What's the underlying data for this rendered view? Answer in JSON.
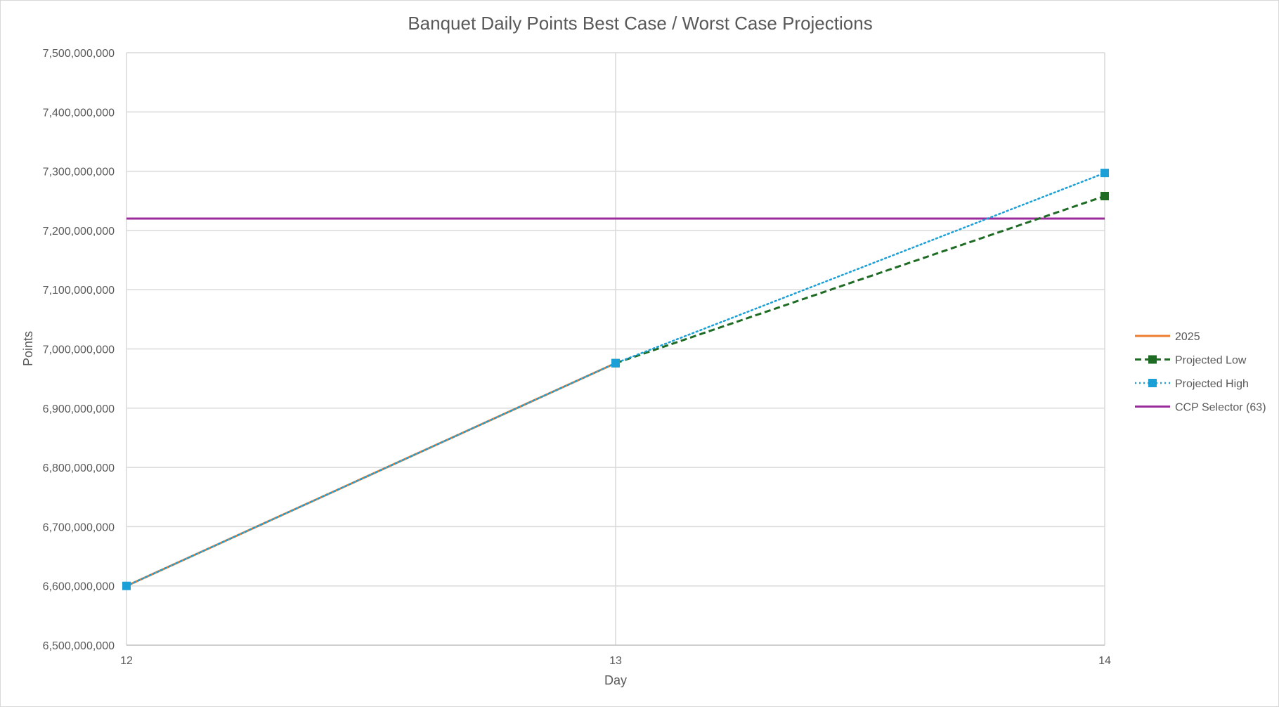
{
  "chart_data": {
    "type": "line",
    "title": "Banquet Daily Points Best Case / Worst Case Projections",
    "xlabel": "Day",
    "ylabel": "Points",
    "x": [
      12,
      13,
      14
    ],
    "xlim": [
      12,
      14
    ],
    "ylim": [
      6500000000,
      7500000000
    ],
    "y_ticks": [
      "6,500,000,000",
      "6,600,000,000",
      "6,700,000,000",
      "6,800,000,000",
      "6,900,000,000",
      "7,000,000,000",
      "7,100,000,000",
      "7,200,000,000",
      "7,300,000,000",
      "7,400,000,000",
      "7,500,000,000"
    ],
    "x_ticks": [
      "12",
      "13",
      "14"
    ],
    "grid": true,
    "legend_position": "right",
    "series": [
      {
        "name": "2025",
        "color": "#ED7D31",
        "style": "solid",
        "marker": "none",
        "values": [
          6600000000,
          6976000000,
          null
        ]
      },
      {
        "name": "Projected Low",
        "color": "#1E6B24",
        "style": "dashed",
        "marker": "square",
        "values": [
          null,
          6976000000,
          7258000000
        ]
      },
      {
        "name": "Projected High",
        "color": "#1A9FD6",
        "style": "dotted",
        "marker": "square",
        "values": [
          6600000000,
          6976000000,
          7297000000
        ]
      },
      {
        "name": "CCP Selector (63)",
        "color": "#9B2C9B",
        "style": "solid",
        "marker": "none",
        "values": [
          7220000000,
          7220000000,
          7220000000
        ]
      }
    ]
  }
}
